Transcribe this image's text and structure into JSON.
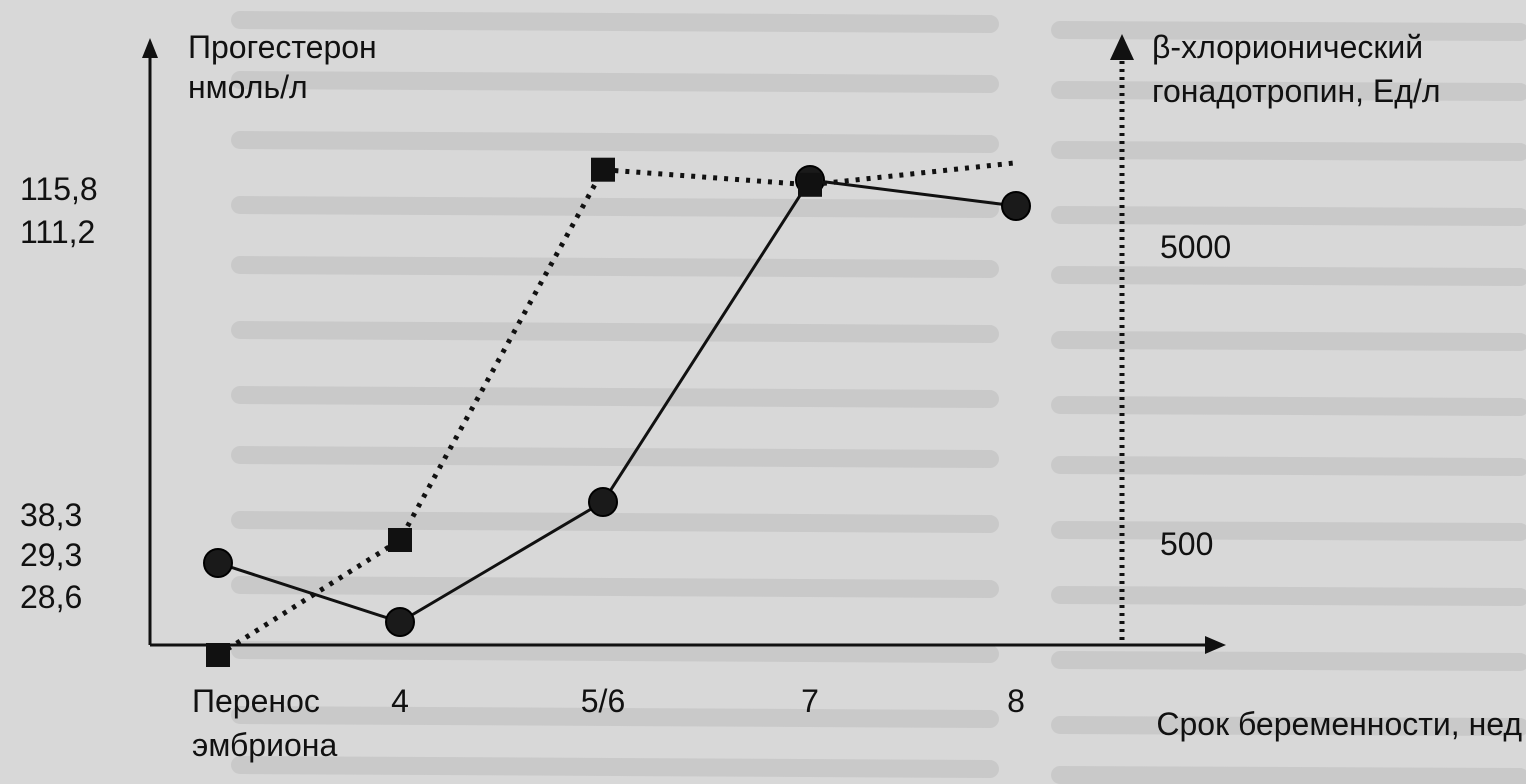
{
  "chart_data": {
    "type": "line",
    "left_axis_title": [
      "Прогестерон",
      "нмоль/л"
    ],
    "right_axis_title": [
      "β-хлорионический",
      "гонадотропин, Ед/л"
    ],
    "x_axis_title": "Срок беременности, нед",
    "categories": [
      {
        "label": [
          "Перенос",
          "эмбриона"
        ]
      },
      {
        "label": [
          "4"
        ]
      },
      {
        "label": [
          "5/6"
        ]
      },
      {
        "label": [
          "7"
        ]
      },
      {
        "label": [
          "8"
        ]
      }
    ],
    "left_tick_labels": [
      "115,8",
      "111,2",
      "38,3",
      "29,3",
      "28,6"
    ],
    "right_tick_labels": [
      "5000",
      "500"
    ],
    "series": [
      {
        "key": "progesterone",
        "axis": "left",
        "style": "solid",
        "marker": "circle",
        "values": [
          29.3,
          28.6,
          38.3,
          115.8,
          111.2
        ]
      },
      {
        "key": "hcg",
        "axis": "right",
        "style": "dotted",
        "marker": "square",
        "values": [
          0,
          500,
          9000,
          8000,
          9500
        ]
      }
    ]
  }
}
